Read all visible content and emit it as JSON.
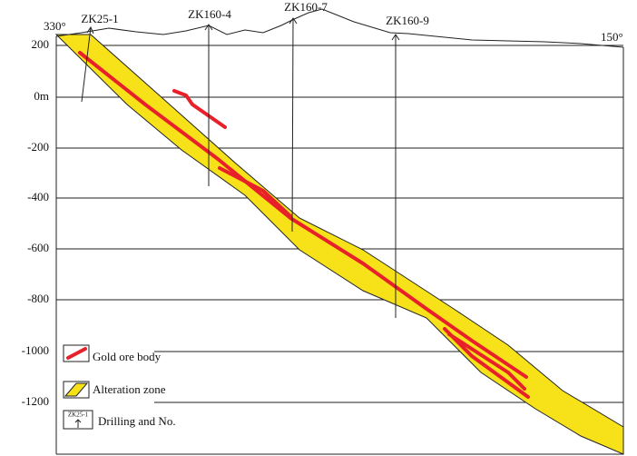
{
  "orientation": {
    "left": "330°",
    "right": "150°"
  },
  "boreholes": [
    {
      "label": "ZK25-1"
    },
    {
      "label": "ZK160-4"
    },
    {
      "label": "ZK160-7"
    },
    {
      "label": "ZK160-9"
    }
  ],
  "elevation_labels": [
    "200",
    "0m",
    "-200",
    "-400",
    "-600",
    "-800",
    "-1000",
    "-1200"
  ],
  "legend": [
    {
      "label": "Gold ore body"
    },
    {
      "label": "Alteration zone"
    },
    {
      "label": "Drilling and No."
    }
  ]
}
